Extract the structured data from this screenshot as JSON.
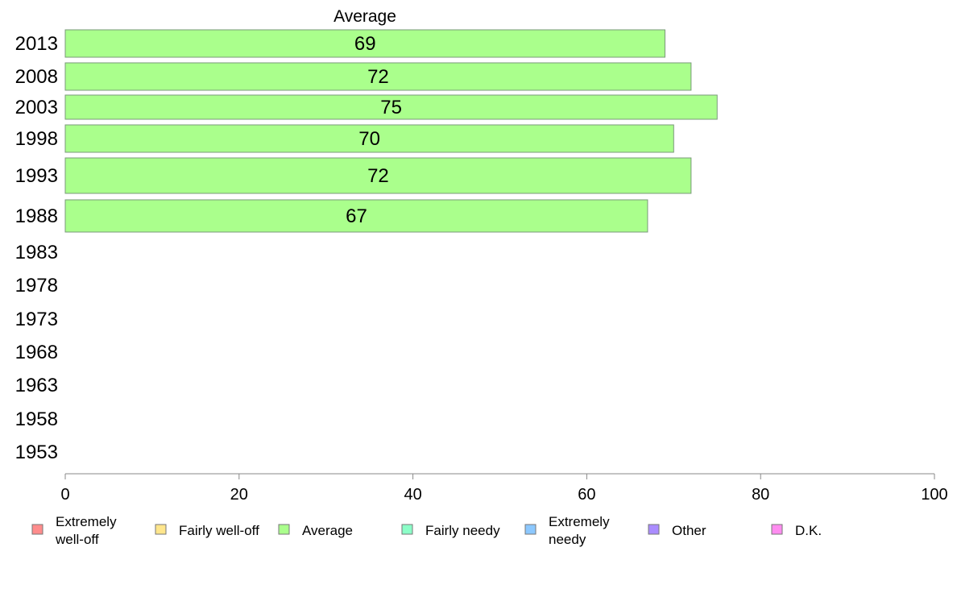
{
  "chart_data": {
    "type": "bar",
    "orientation": "horizontal",
    "title": "Average",
    "categories": [
      "2013",
      "2008",
      "2003",
      "1998",
      "1993",
      "1988",
      "1983",
      "1978",
      "1973",
      "1968",
      "1963",
      "1958",
      "1953"
    ],
    "values": [
      69,
      72,
      75,
      70,
      72,
      67,
      null,
      null,
      null,
      null,
      null,
      null,
      null
    ],
    "value_labels": [
      "69",
      "72",
      "75",
      "70",
      "72",
      "67",
      "",
      "",
      "",
      "",
      "",
      "",
      ""
    ],
    "bar_color": "#aaff8c",
    "xlim": [
      0,
      100
    ],
    "xticks": [
      0,
      20,
      40,
      60,
      80,
      100
    ],
    "grid": false,
    "legend_position": "bottom",
    "legend": [
      {
        "lines": [
          "Extremely",
          "well-off"
        ],
        "color": "#ff8c8c"
      },
      {
        "lines": [
          "Fairly well-off"
        ],
        "color": "#ffe68c"
      },
      {
        "lines": [
          "Average"
        ],
        "color": "#aaff8c"
      },
      {
        "lines": [
          "Fairly needy"
        ],
        "color": "#8cffc8"
      },
      {
        "lines": [
          "Extremely",
          "needy"
        ],
        "color": "#8cc8ff"
      },
      {
        "lines": [
          "Other"
        ],
        "color": "#aa8cff"
      },
      {
        "lines": [
          "D.K."
        ],
        "color": "#ff8cf0"
      }
    ]
  }
}
